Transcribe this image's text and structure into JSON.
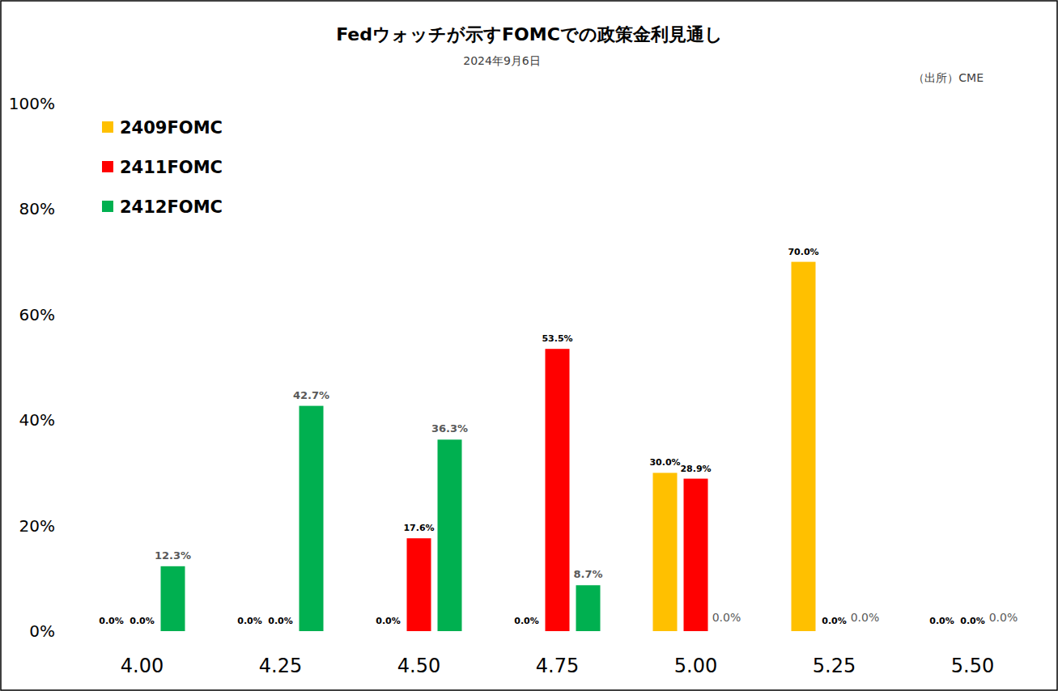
{
  "chart_data": {
    "type": "bar",
    "title": "Fedウォッチが示すFOMCでの政策金利見通し",
    "subtitle": "2024年9月6日",
    "source": "（出所）CME",
    "categories": [
      "4.00",
      "4.25",
      "4.50",
      "4.75",
      "5.00",
      "5.25",
      "5.50"
    ],
    "series": [
      {
        "name": "2409FOMC",
        "color": "#ffc000",
        "values": [
          0,
          0,
          0,
          0,
          30.0,
          70.0,
          0
        ],
        "value_labels": [
          "0.0%",
          "0.0%",
          "0.0%",
          "0.0%",
          "30.0%",
          "70.0%",
          "0.0%"
        ]
      },
      {
        "name": "2411FOMC",
        "color": "#ff0000",
        "values": [
          0,
          0,
          17.6,
          53.5,
          28.9,
          0,
          0
        ],
        "value_labels": [
          "0.0%",
          "0.0%",
          "17.6%",
          "53.5%",
          "28.9%",
          "0.0%",
          "0.0%"
        ]
      },
      {
        "name": "2412FOMC",
        "color": "#00b050",
        "values": [
          12.3,
          42.7,
          36.3,
          8.7,
          0,
          0,
          0
        ],
        "value_labels": [
          "12.3%",
          "42.7%",
          "36.3%",
          "8.7%",
          "0.0%",
          "0.0%",
          "0.0%"
        ]
      }
    ],
    "ylim": [
      0,
      100
    ],
    "yticks": [
      {
        "value": 0,
        "label": "0%"
      },
      {
        "value": 20,
        "label": "20%"
      },
      {
        "value": 40,
        "label": "40%"
      },
      {
        "value": 60,
        "label": "60%"
      },
      {
        "value": 80,
        "label": "80%"
      },
      {
        "value": 100,
        "label": "100%"
      }
    ],
    "grid": false,
    "legend": "top-left",
    "data_labels": true
  }
}
